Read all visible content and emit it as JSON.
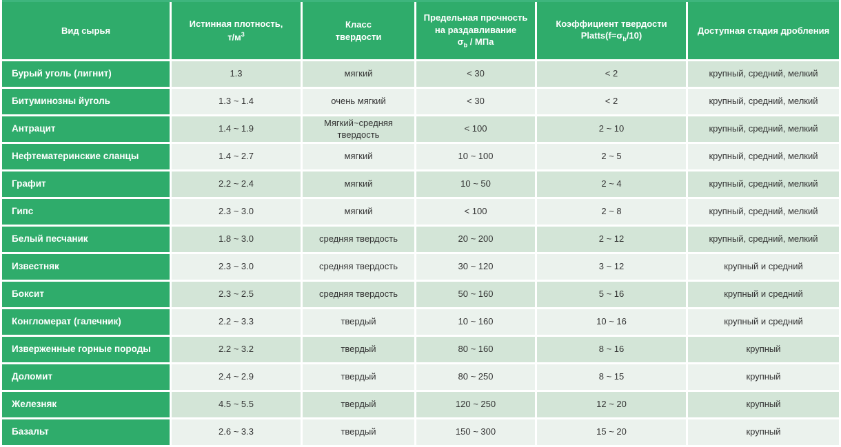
{
  "colors": {
    "header_green": "#2fac6b",
    "row_tint_dark": "#d3e5d7",
    "row_tint_light": "#ebf2ed",
    "header_text": "#ffffff",
    "cell_text": "#333333"
  },
  "table": {
    "header": {
      "material": "Вид сырья",
      "density_line1": "Истинная плотность,",
      "density_line2": "т/м",
      "density_sup": "3",
      "class_line1": "Класс",
      "class_line2": "твердости",
      "strength_line1": "Предельная прочность",
      "strength_line2": "на раздавливание",
      "strength_sigma": "σ",
      "strength_sub": "b",
      "strength_rest": " / МПа",
      "platts_line1": "Коэффициент твердости",
      "platts_pre": "Platts(f=σ",
      "platts_sub": "b",
      "platts_rest": "/10)",
      "stages": "Доступная стадия дробления"
    },
    "rows": [
      {
        "material": "Бурый уголь (лигнит)",
        "density": "1.3",
        "hardness_class": "мягкий",
        "strength": "< 30",
        "platts": "< 2",
        "stages": "крупный, средний, мелкий"
      },
      {
        "material": "Битуминозны йуголь",
        "density": "1.3 ~ 1.4",
        "hardness_class": "очень мягкий",
        "strength": "< 30",
        "platts": "< 2",
        "stages": "крупный, средний, мелкий"
      },
      {
        "material": "Антрацит",
        "density": "1.4 ~ 1.9",
        "hardness_class": "Мягкий~средняя твердость",
        "strength": "< 100",
        "platts": "2 ~ 10",
        "stages": "крупный, средний, мелкий"
      },
      {
        "material": "Нефтематеринские сланцы",
        "density": "1.4 ~ 2.7",
        "hardness_class": "мягкий",
        "strength": "10 ~ 100",
        "platts": "2 ~ 5",
        "stages": "крупный, средний, мелкий"
      },
      {
        "material": "Графит",
        "density": "2.2 ~ 2.4",
        "hardness_class": "мягкий",
        "strength": "10 ~ 50",
        "platts": "2 ~ 4",
        "stages": "крупный, средний, мелкий"
      },
      {
        "material": "Гипс",
        "density": "2.3 ~ 3.0",
        "hardness_class": "мягкий",
        "strength": "< 100",
        "platts": "2 ~ 8",
        "stages": "крупный, средний, мелкий"
      },
      {
        "material": "Белый песчаник",
        "density": "1.8 ~ 3.0",
        "hardness_class": "средняя твердость",
        "strength": "20 ~ 200",
        "platts": "2 ~ 12",
        "stages": "крупный, средний, мелкий"
      },
      {
        "material": "Известняк",
        "density": "2.3 ~ 3.0",
        "hardness_class": "средняя твердость",
        "strength": "30 ~ 120",
        "platts": "3 ~ 12",
        "stages": "крупный и средний"
      },
      {
        "material": "Боксит",
        "density": "2.3 ~ 2.5",
        "hardness_class": "средняя твердость",
        "strength": "50 ~ 160",
        "platts": "5 ~ 16",
        "stages": "крупный и средний"
      },
      {
        "material": "Конгломерат (галечник)",
        "density": "2.2 ~ 3.3",
        "hardness_class": "твердый",
        "strength": "10 ~ 160",
        "platts": "10 ~ 16",
        "stages": "крупный и средний"
      },
      {
        "material": "Изверженные горные породы",
        "density": "2.2 ~ 3.2",
        "hardness_class": "твердый",
        "strength": "80 ~ 160",
        "platts": "8 ~ 16",
        "stages": "крупный"
      },
      {
        "material": "Доломит",
        "density": "2.4 ~ 2.9",
        "hardness_class": "твердый",
        "strength": "80 ~ 250",
        "platts": "8 ~ 15",
        "stages": "крупный"
      },
      {
        "material": "Железняк",
        "density": "4.5 ~ 5.5",
        "hardness_class": "твердый",
        "strength": "120 ~ 250",
        "platts": "12 ~ 20",
        "stages": "крупный"
      },
      {
        "material": "Базальт",
        "density": "2.6 ~ 3.3",
        "hardness_class": "твердый",
        "strength": "150 ~ 300",
        "platts": "15 ~ 20",
        "stages": "крупный"
      }
    ]
  }
}
